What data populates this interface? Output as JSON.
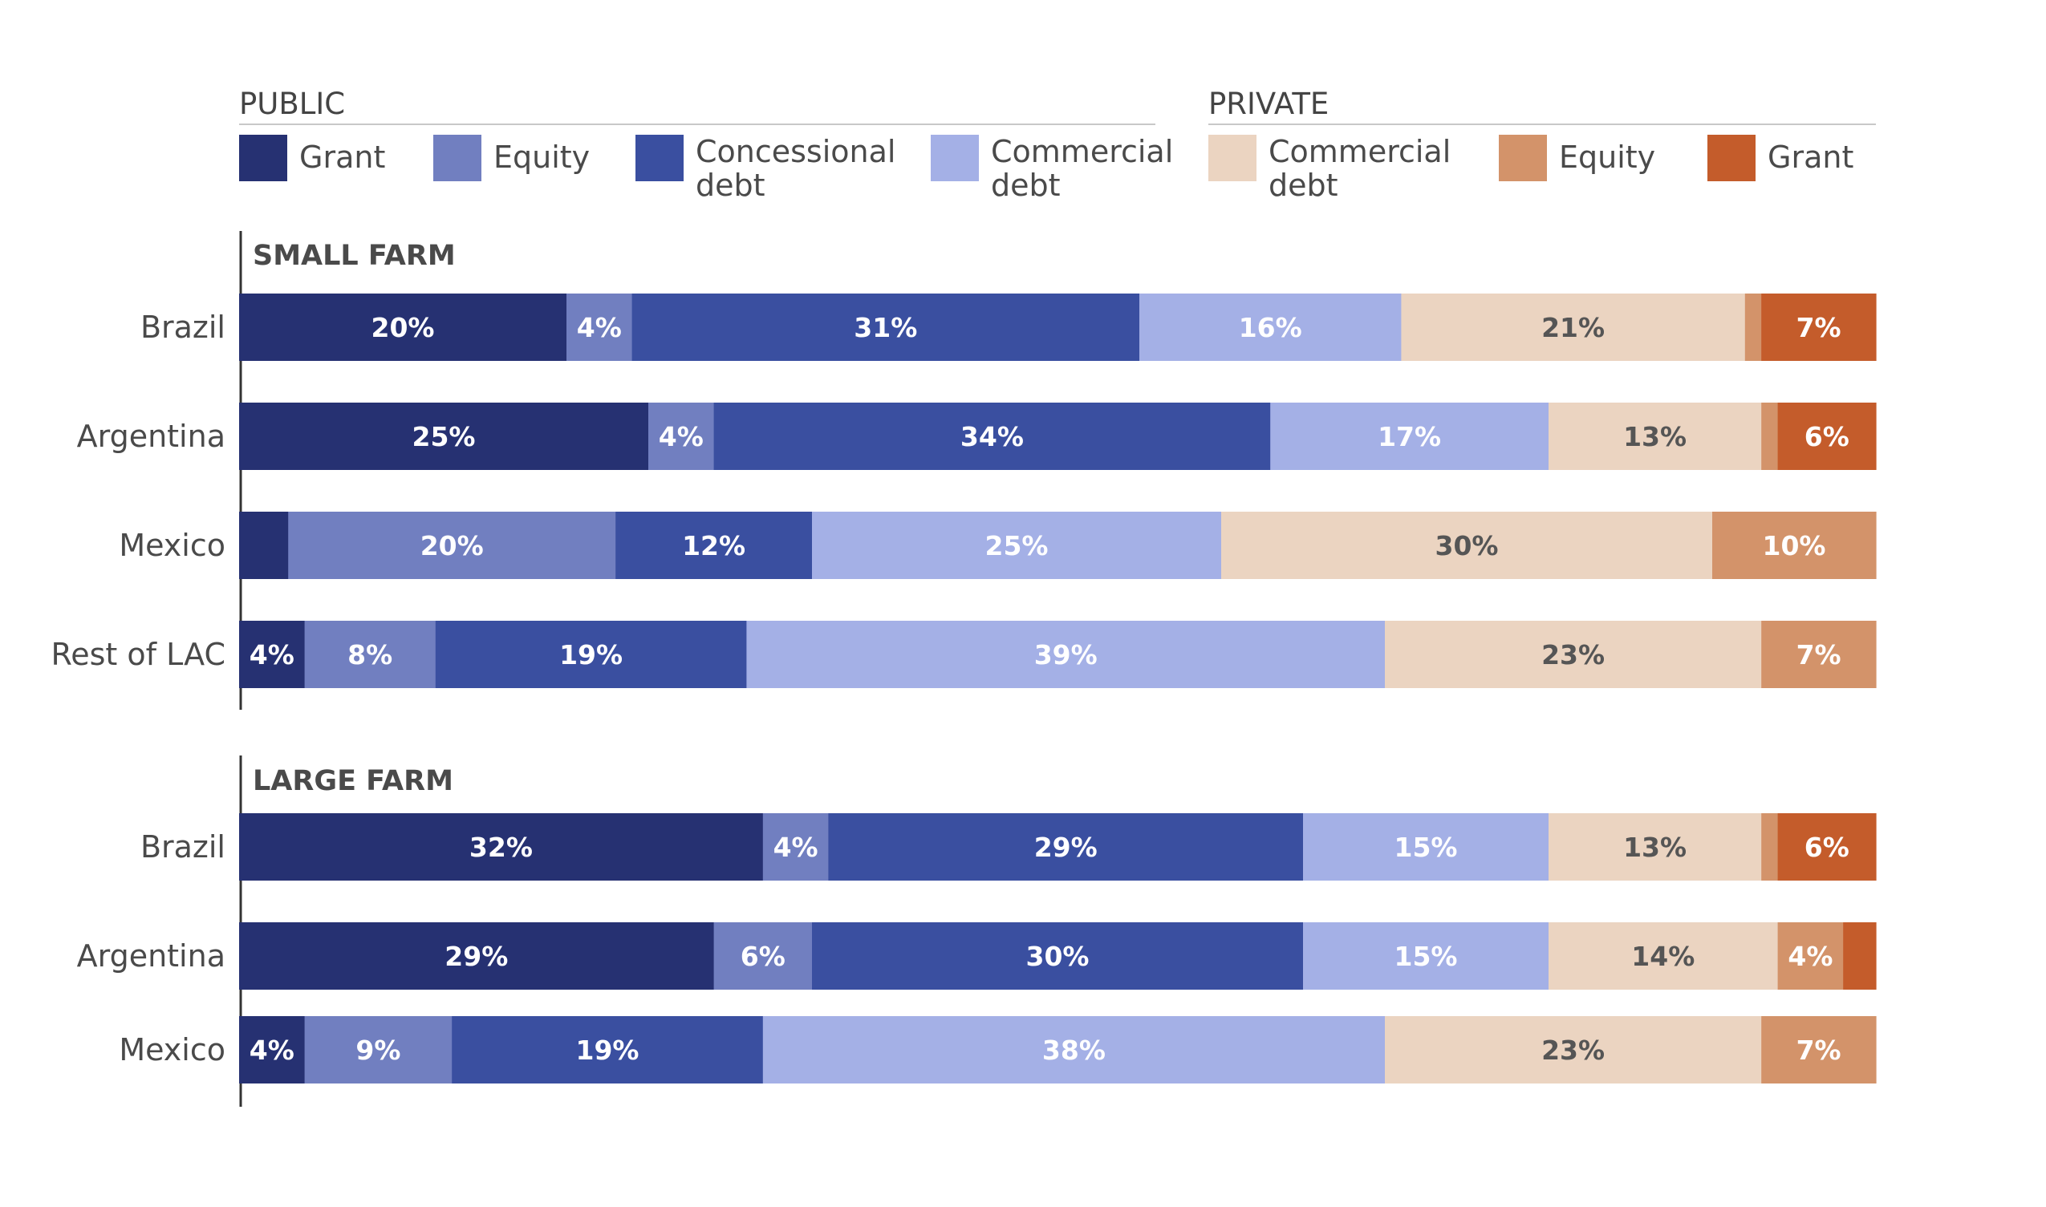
{
  "chart_data": {
    "type": "bar",
    "orientation": "horizontal",
    "stacked": true,
    "normalized": true,
    "legend_groups": [
      {
        "title": "PUBLIC",
        "items": [
          {
            "key": "pub_grant",
            "lines": [
              "Grant"
            ],
            "color": "#263172"
          },
          {
            "key": "pub_equity",
            "lines": [
              "Equity"
            ],
            "color": "#717fc0"
          },
          {
            "key": "pub_concessional",
            "lines": [
              "Concessional",
              "debt"
            ],
            "color": "#3a4fa0"
          },
          {
            "key": "pub_commercial",
            "lines": [
              "Commercial",
              "debt"
            ],
            "color": "#a4b0e6"
          }
        ]
      },
      {
        "title": "PRIVATE",
        "items": [
          {
            "key": "priv_commercial",
            "lines": [
              "Commercial",
              "debt"
            ],
            "color": "#ebd4c1"
          },
          {
            "key": "priv_equity",
            "lines": [
              "Equity"
            ],
            "color": "#d3936a"
          },
          {
            "key": "priv_grant",
            "lines": [
              "Grant"
            ],
            "color": "#c45c2b"
          }
        ]
      }
    ],
    "series_order": [
      "pub_grant",
      "pub_equity",
      "pub_concessional",
      "pub_commercial",
      "priv_commercial",
      "priv_equity",
      "priv_grant"
    ],
    "label_colors": {
      "pub_grant": "#ffffff",
      "pub_equity": "#ffffff",
      "pub_concessional": "#ffffff",
      "pub_commercial": "#ffffff",
      "priv_commercial": "#555555",
      "priv_equity": "#ffffff",
      "priv_grant": "#ffffff"
    },
    "sections": [
      {
        "title": "SMALL FARM",
        "rows": [
          {
            "label": "Brazil",
            "values": {
              "pub_grant": 20,
              "pub_equity": 4,
              "pub_concessional": 31,
              "pub_commercial": 16,
              "priv_commercial": 21,
              "priv_equity": 1,
              "priv_grant": 7
            },
            "labels": {
              "pub_grant": "20%",
              "pub_equity": "4%",
              "pub_concessional": "31%",
              "pub_commercial": "16%",
              "priv_commercial": "21%",
              "priv_equity": "",
              "priv_grant": "7%"
            }
          },
          {
            "label": "Argentina",
            "values": {
              "pub_grant": 25,
              "pub_equity": 4,
              "pub_concessional": 34,
              "pub_commercial": 17,
              "priv_commercial": 13,
              "priv_equity": 1,
              "priv_grant": 6
            },
            "labels": {
              "pub_grant": "25%",
              "pub_equity": "4%",
              "pub_concessional": "34%",
              "pub_commercial": "17%",
              "priv_commercial": "13%",
              "priv_equity": "",
              "priv_grant": "6%"
            }
          },
          {
            "label": "Mexico",
            "values": {
              "pub_grant": 3,
              "pub_equity": 20,
              "pub_concessional": 12,
              "pub_commercial": 25,
              "priv_commercial": 30,
              "priv_equity": 10,
              "priv_grant": 0
            },
            "labels": {
              "pub_grant": "",
              "pub_equity": "20%",
              "pub_concessional": "12%",
              "pub_commercial": "25%",
              "priv_commercial": "30%",
              "priv_equity": "10%",
              "priv_grant": ""
            }
          },
          {
            "label": "Rest of LAC",
            "values": {
              "pub_grant": 4,
              "pub_equity": 8,
              "pub_concessional": 19,
              "pub_commercial": 39,
              "priv_commercial": 23,
              "priv_equity": 7,
              "priv_grant": 0
            },
            "labels": {
              "pub_grant": "4%",
              "pub_equity": "8%",
              "pub_concessional": "19%",
              "pub_commercial": "39%",
              "priv_commercial": "23%",
              "priv_equity": "7%",
              "priv_grant": ""
            }
          }
        ]
      },
      {
        "title": "LARGE FARM",
        "rows": [
          {
            "label": "Brazil",
            "values": {
              "pub_grant": 32,
              "pub_equity": 4,
              "pub_concessional": 29,
              "pub_commercial": 15,
              "priv_commercial": 13,
              "priv_equity": 1,
              "priv_grant": 6
            },
            "labels": {
              "pub_grant": "32%",
              "pub_equity": "4%",
              "pub_concessional": "29%",
              "pub_commercial": "15%",
              "priv_commercial": "13%",
              "priv_equity": "",
              "priv_grant": "6%"
            }
          },
          {
            "label": "Argentina",
            "values": {
              "pub_grant": 29,
              "pub_equity": 6,
              "pub_concessional": 30,
              "pub_commercial": 15,
              "priv_commercial": 14,
              "priv_equity": 4,
              "priv_grant": 2
            },
            "labels": {
              "pub_grant": "29%",
              "pub_equity": "6%",
              "pub_concessional": "30%",
              "pub_commercial": "15%",
              "priv_commercial": "14%",
              "priv_equity": "4%",
              "priv_grant": ""
            }
          },
          {
            "label": "Mexico",
            "values": {
              "pub_grant": 4,
              "pub_equity": 9,
              "pub_concessional": 19,
              "pub_commercial": 38,
              "priv_commercial": 23,
              "priv_equity": 7,
              "priv_grant": 0
            },
            "labels": {
              "pub_grant": "4%",
              "pub_equity": "9%",
              "pub_concessional": "19%",
              "pub_commercial": "38%",
              "priv_commercial": "23%",
              "priv_equity": "7%",
              "priv_grant": ""
            }
          }
        ]
      }
    ]
  }
}
